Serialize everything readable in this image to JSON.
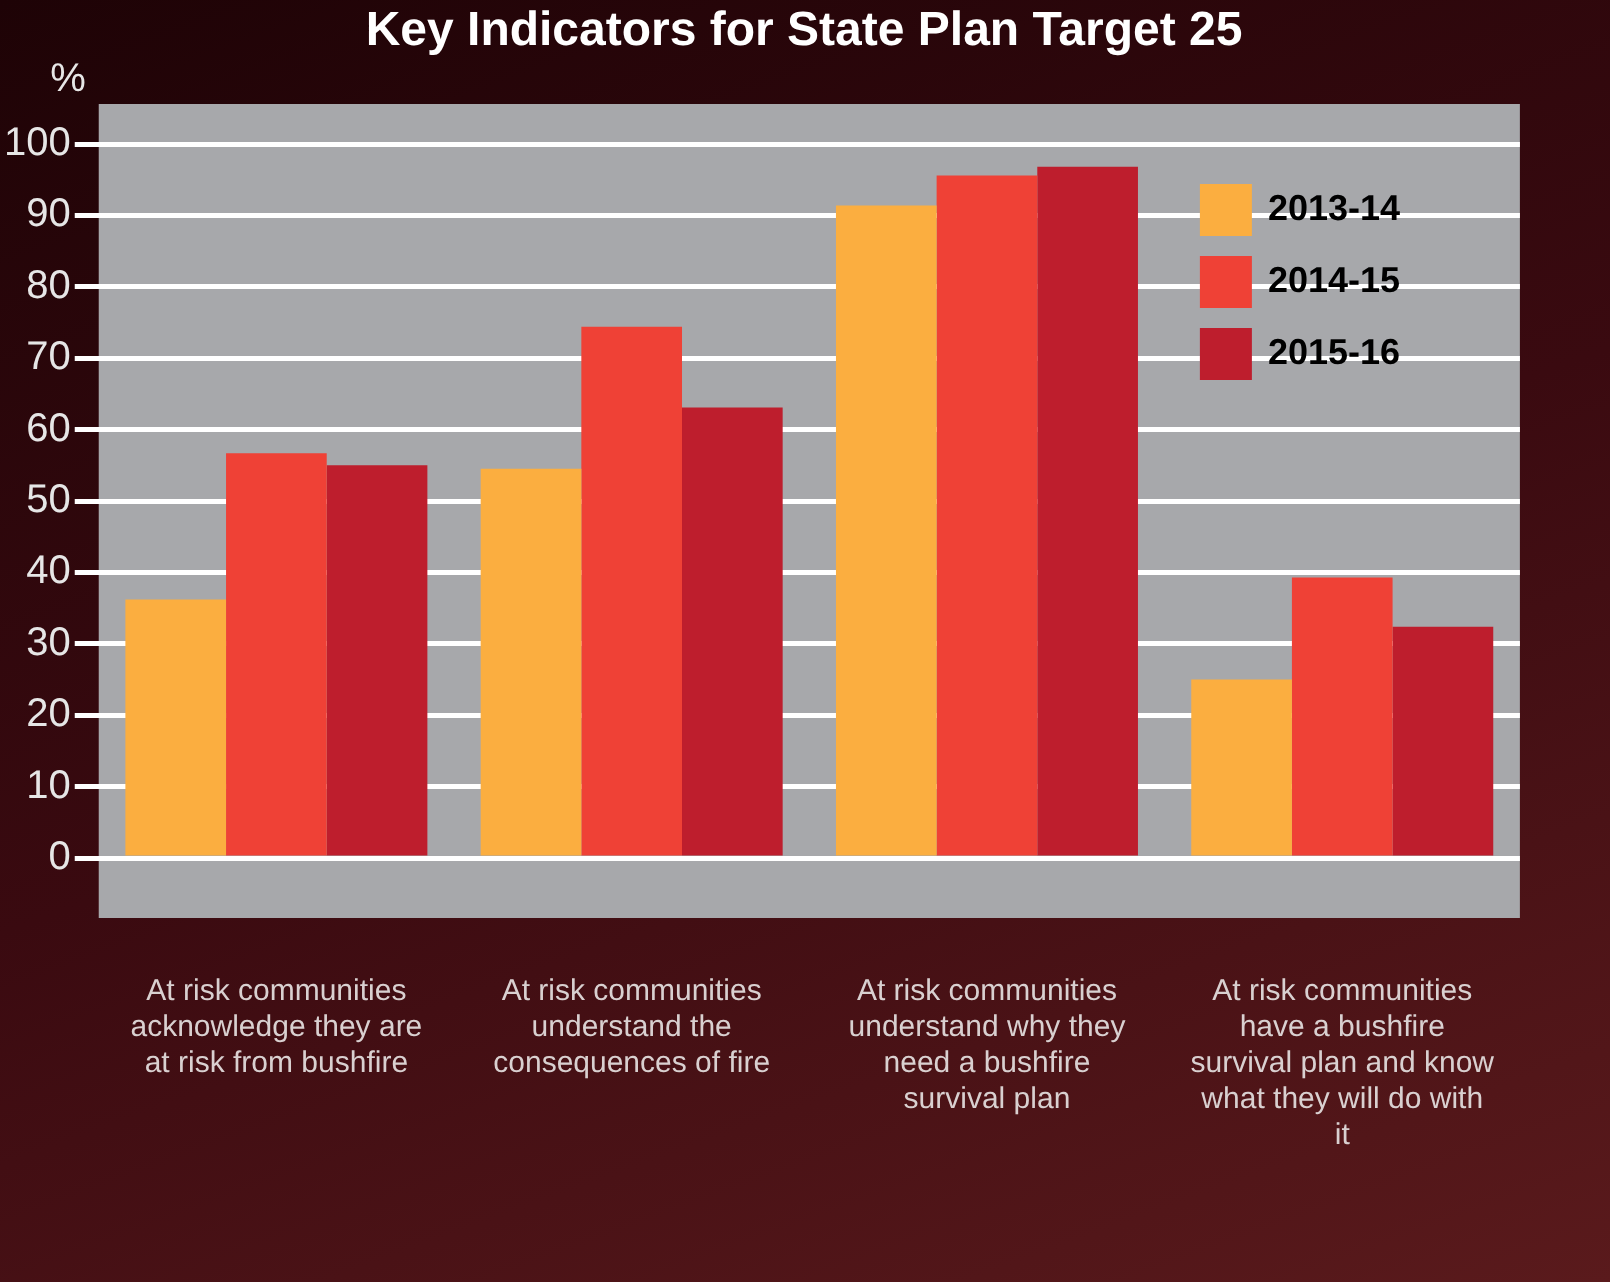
{
  "chart_data": {
    "type": "bar",
    "title": "Key Indicators for State Plan Target 25",
    "ylabel": "%",
    "categories": [
      "At risk communities acknowledge they are at risk from bushfire",
      "At risk communities understand the consequences of fire",
      "At risk communities understand why they need a bushfire survival plan",
      "At risk communities have a bushfire survival plan and know what they will do with it"
    ],
    "series": [
      {
        "name": "2013-14",
        "color": "#fbae40",
        "values": [
          36.2,
          54.5,
          91.4,
          25.0
        ]
      },
      {
        "name": "2014-15",
        "color": "#ef4136",
        "values": [
          56.7,
          74.4,
          95.6,
          39.3
        ]
      },
      {
        "name": "2015-16",
        "color": "#be1e2d",
        "values": [
          55.0,
          63.1,
          96.8,
          32.4
        ]
      }
    ],
    "ylim": [
      0,
      100
    ],
    "yticks": [
      0,
      10,
      20,
      30,
      40,
      50,
      60,
      70,
      80,
      90,
      100
    ],
    "grid": "y",
    "legend": "top right"
  }
}
